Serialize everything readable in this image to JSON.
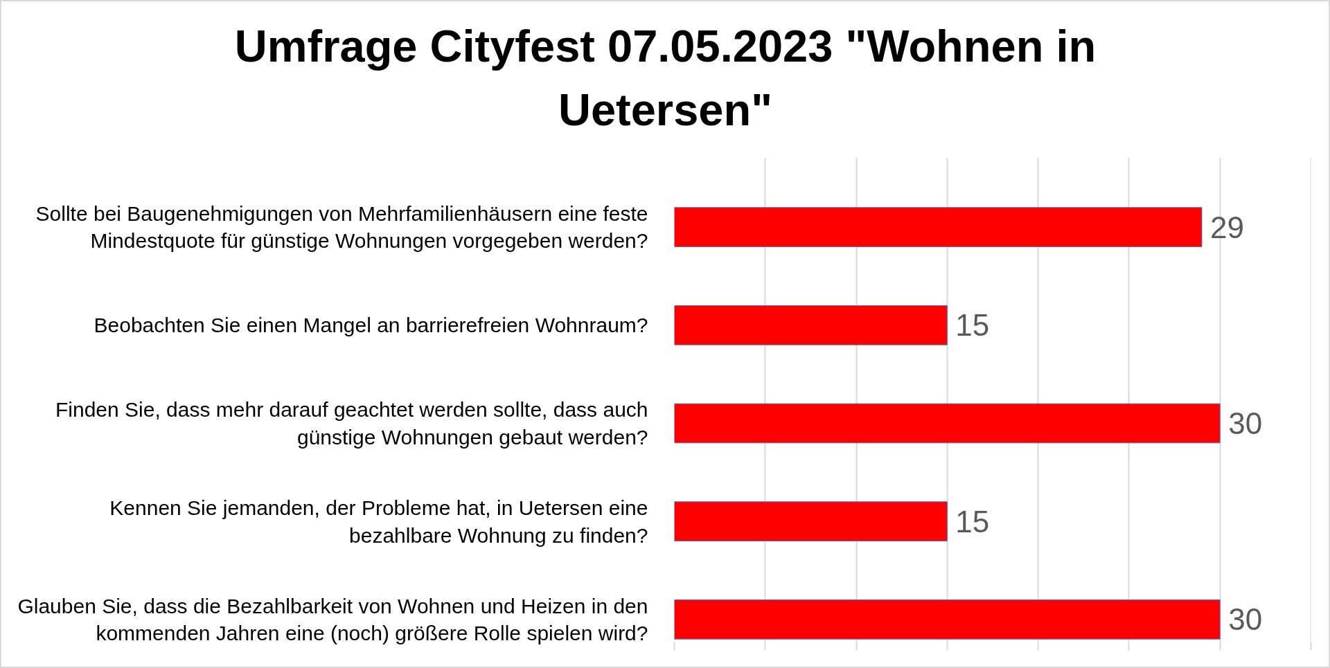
{
  "chart_data": {
    "type": "bar",
    "orientation": "horizontal",
    "title": "Umfrage Cityfest 07.05.2023 \"Wohnen in Uetersen\"",
    "categories": [
      "Sollte bei Baugenehmigungen von Mehrfamilienhäusern eine feste Mindestquote für günstige Wohnungen vorgegeben werden?",
      "Beobachten Sie einen Mangel an barrierefreien Wohnraum?",
      "Finden Sie, dass mehr darauf geachtet werden sollte, dass auch günstige Wohnungen gebaut werden?",
      "Kennen Sie jemanden, der Probleme hat, in Uetersen eine bezahlbare Wohnung zu finden?",
      "Glauben Sie, dass die Bezahlbarkeit von Wohnen und Heizen in den kommenden Jahren eine (noch) größere Rolle spielen wird?"
    ],
    "values": [
      29,
      15,
      30,
      15,
      30
    ],
    "color": "#ff0000",
    "xlim": [
      0,
      35
    ],
    "xticks": [
      {
        "value": 0,
        "label": null
      },
      {
        "value": 5,
        "label": null
      },
      {
        "value": 10,
        "label": null
      },
      {
        "value": 15,
        "label": null
      },
      {
        "value": 20,
        "label": null
      },
      {
        "value": 25,
        "label": null
      },
      {
        "value": 30,
        "label": null
      },
      {
        "value": 35,
        "label": null
      }
    ],
    "grid": "x",
    "data_labels": true,
    "tick_labels": "y"
  }
}
